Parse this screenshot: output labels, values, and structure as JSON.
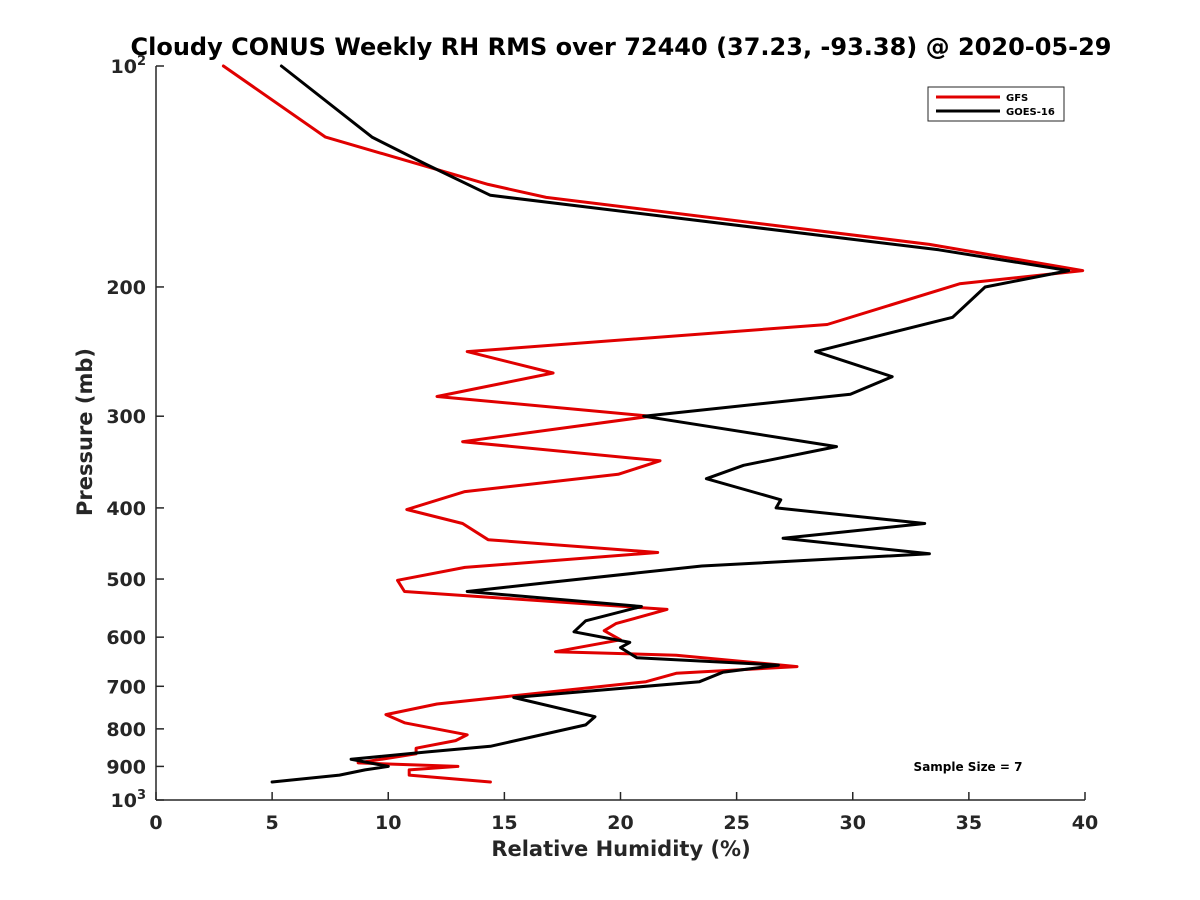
{
  "chart_data": {
    "type": "line",
    "title": "Cloudy CONUS Weekly RH RMS over 72440 (37.23, -93.38) @ 2020-05-29",
    "xlabel": "Relative Humidity (%)",
    "ylabel": "Pressure (mb)",
    "xlim": [
      0,
      40
    ],
    "ylim": [
      100,
      1000
    ],
    "y_scale": "log",
    "y_reversed": true,
    "grid": false,
    "legend_position": "top-right",
    "x_ticks": [
      "0",
      "5",
      "10",
      "15",
      "20",
      "25",
      "30",
      "35",
      "40"
    ],
    "y_ticks": [
      {
        "value": 100,
        "base": "10",
        "exp": "2"
      },
      {
        "value": 200,
        "label": "200"
      },
      {
        "value": 300,
        "label": "300"
      },
      {
        "value": 400,
        "label": "400"
      },
      {
        "value": 500,
        "label": "500"
      },
      {
        "value": 600,
        "label": "600"
      },
      {
        "value": 700,
        "label": "700"
      },
      {
        "value": 800,
        "label": "800"
      },
      {
        "value": 900,
        "label": "900"
      },
      {
        "value": 1000,
        "base": "10",
        "exp": "3"
      }
    ],
    "series": [
      {
        "name": "GFS",
        "color": "#e00000",
        "points": [
          [
            2.9,
            100
          ],
          [
            7.3,
            125
          ],
          [
            14.3,
            145
          ],
          [
            16.8,
            151
          ],
          [
            33.3,
            175
          ],
          [
            39.9,
            190
          ],
          [
            34.6,
            198
          ],
          [
            28.9,
            225
          ],
          [
            13.4,
            245
          ],
          [
            17.1,
            262
          ],
          [
            12.1,
            282
          ],
          [
            21.3,
            300
          ],
          [
            13.2,
            325
          ],
          [
            21.7,
            345
          ],
          [
            19.9,
            360
          ],
          [
            13.3,
            380
          ],
          [
            10.8,
            402
          ],
          [
            13.2,
            420
          ],
          [
            14.3,
            442
          ],
          [
            21.6,
            460
          ],
          [
            13.3,
            482
          ],
          [
            10.4,
            502
          ],
          [
            10.7,
            520
          ],
          [
            22.0,
            550
          ],
          [
            19.8,
            575
          ],
          [
            19.3,
            588
          ],
          [
            20.0,
            605
          ],
          [
            17.2,
            628
          ],
          [
            22.4,
            635
          ],
          [
            27.6,
            658
          ],
          [
            22.4,
            672
          ],
          [
            21.1,
            690
          ],
          [
            12.1,
            740
          ],
          [
            9.9,
            765
          ],
          [
            10.7,
            785
          ],
          [
            13.4,
            815
          ],
          [
            12.9,
            830
          ],
          [
            11.2,
            850
          ],
          [
            11.2,
            865
          ],
          [
            8.7,
            890
          ],
          [
            13.0,
            900
          ],
          [
            10.9,
            910
          ],
          [
            10.9,
            925
          ],
          [
            14.4,
            945
          ]
        ]
      },
      {
        "name": "GOES-16",
        "color": "#000000",
        "points": [
          [
            5.4,
            100
          ],
          [
            9.3,
            125
          ],
          [
            11.6,
            136
          ],
          [
            14.4,
            150
          ],
          [
            33.7,
            178
          ],
          [
            39.3,
            190
          ],
          [
            35.7,
            200
          ],
          [
            34.3,
            220
          ],
          [
            28.4,
            245
          ],
          [
            31.7,
            265
          ],
          [
            29.9,
            280
          ],
          [
            21.0,
            300
          ],
          [
            29.3,
            330
          ],
          [
            25.3,
            350
          ],
          [
            23.7,
            365
          ],
          [
            26.9,
            390
          ],
          [
            26.7,
            400
          ],
          [
            33.1,
            420
          ],
          [
            27.0,
            440
          ],
          [
            33.3,
            462
          ],
          [
            23.5,
            480
          ],
          [
            17.0,
            505
          ],
          [
            13.4,
            520
          ],
          [
            20.9,
            545
          ],
          [
            18.5,
            570
          ],
          [
            18.0,
            590
          ],
          [
            20.4,
            610
          ],
          [
            20.0,
            620
          ],
          [
            20.7,
            640
          ],
          [
            26.8,
            655
          ],
          [
            24.4,
            670
          ],
          [
            23.4,
            690
          ],
          [
            15.4,
            725
          ],
          [
            18.9,
            770
          ],
          [
            18.5,
            790
          ],
          [
            14.4,
            845
          ],
          [
            11.7,
            860
          ],
          [
            8.4,
            880
          ],
          [
            10.0,
            900
          ],
          [
            9.0,
            910
          ],
          [
            7.9,
            925
          ],
          [
            5.0,
            945
          ]
        ]
      }
    ],
    "annotation": "Sample Size = 7"
  }
}
